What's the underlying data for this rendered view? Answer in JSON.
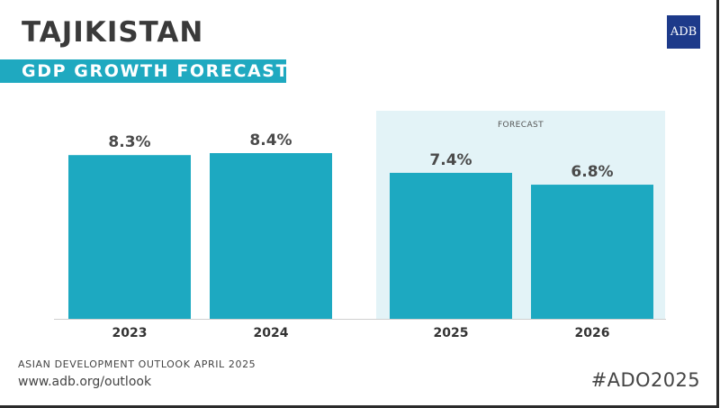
{
  "header": {
    "title": "TAJIKISTAN",
    "subtitle": "GDP GROWTH FORECAST",
    "logo_text": "ADB"
  },
  "footer": {
    "source": "ASIAN DEVELOPMENT OUTLOOK APRIL 2025",
    "url": "www.adb.org/outlook",
    "hashtag": "#ADO2025"
  },
  "colors": {
    "bar": "#1da9c1",
    "forecast_bg": "#e3f3f7",
    "accent": "#1fa9c0",
    "logo": "#1d3a8a"
  },
  "chart_data": {
    "type": "bar",
    "title": "GDP GROWTH FORECAST",
    "categories": [
      "2023",
      "2024",
      "2025",
      "2026"
    ],
    "values": [
      8.3,
      8.4,
      7.4,
      6.8
    ],
    "value_labels": [
      "8.3%",
      "8.4%",
      "7.4%",
      "6.8%"
    ],
    "unit": "%",
    "forecast_label": "FORECAST",
    "forecast_categories": [
      "2025",
      "2026"
    ],
    "xlabel": "",
    "ylabel": "",
    "ylim": [
      0,
      8.4
    ],
    "grid": false
  }
}
